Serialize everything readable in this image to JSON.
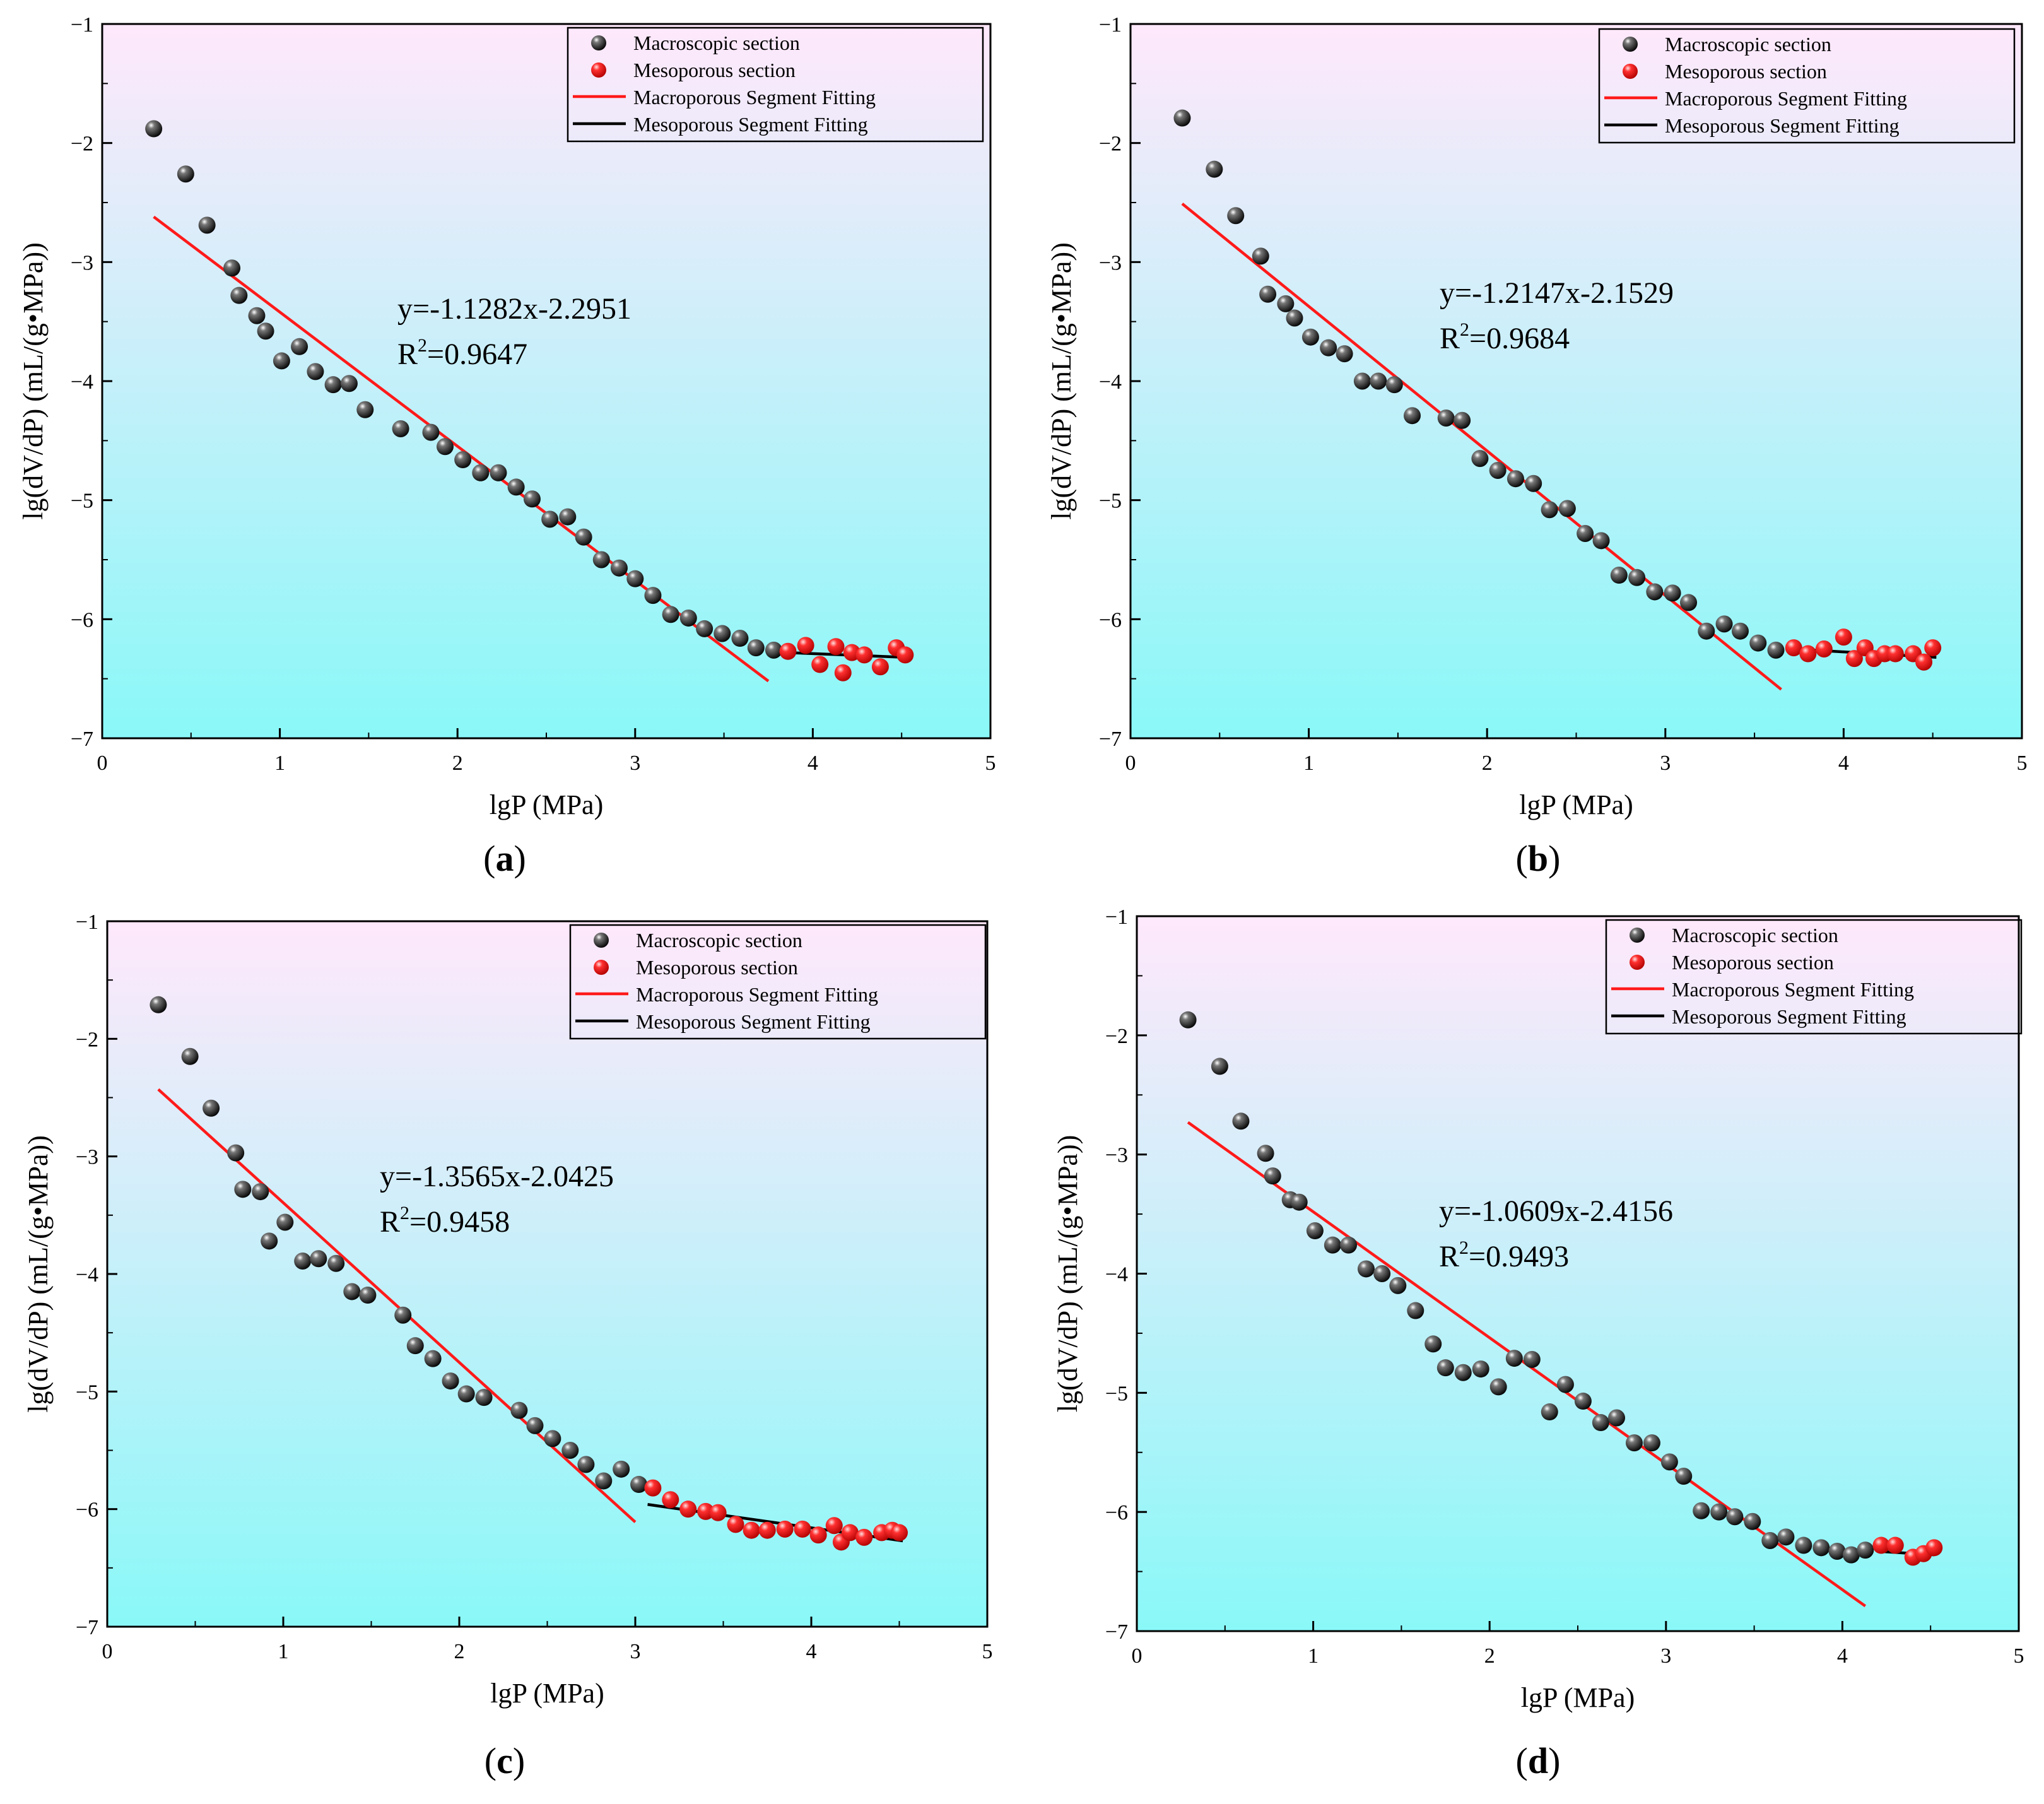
{
  "colors": {
    "macro_point": "#111111",
    "meso_point": "#ff1a1a",
    "macro_fit": "#ff1a1a",
    "meso_fit": "#000000",
    "bg_top": "#ffe8fb",
    "bg_bottom": "#8af8f8"
  },
  "legend": [
    "Macroscopic section",
    "Mesoporous section",
    "Macroporous Segment Fitting",
    "Mesoporous Segment Fitting"
  ],
  "chart_data": [
    {
      "type": "scatter",
      "panel_label": "a",
      "xlabel": "lgP (MPa)",
      "ylabel": "lg(dV/dP) (mL/(g•MPa))",
      "xlim": [
        0,
        5
      ],
      "ylim": [
        -7,
        -1
      ],
      "xticks": [
        "0",
        "1",
        "2",
        "3",
        "4",
        "5"
      ],
      "yticks": [
        "−7",
        "−6",
        "−5",
        "−4",
        "−3",
        "−2",
        "−1"
      ],
      "equation": "y=-1.1282x-2.2951",
      "r2_label": "R",
      "r2_sup": "2",
      "r2_value": "=0.9647",
      "fit_macro": {
        "x": [
          0.29,
          3.75
        ],
        "y": [
          -2.62,
          -6.52
        ]
      },
      "fit_meso": {
        "x": [
          3.85,
          4.52
        ],
        "y": [
          -6.28,
          -6.32
        ]
      },
      "series": [
        {
          "name": "Macroscopic section",
          "x": [
            0.29,
            0.47,
            0.59,
            0.73,
            0.77,
            0.87,
            0.92,
            1.01,
            1.11,
            1.2,
            1.3,
            1.39,
            1.48,
            1.68,
            1.85,
            1.93,
            2.03,
            2.13,
            2.23,
            2.33,
            2.42,
            2.52,
            2.62,
            2.71,
            2.81,
            2.91,
            3.0,
            3.1,
            3.2,
            3.3,
            3.39,
            3.49,
            3.59,
            3.68,
            3.78
          ],
          "y": [
            -1.88,
            -2.26,
            -2.69,
            -3.05,
            -3.28,
            -3.45,
            -3.58,
            -3.83,
            -3.71,
            -3.92,
            -4.03,
            -4.02,
            -4.24,
            -4.4,
            -4.43,
            -4.55,
            -4.66,
            -4.77,
            -4.77,
            -4.89,
            -4.99,
            -5.16,
            -5.14,
            -5.31,
            -5.5,
            -5.57,
            -5.66,
            -5.8,
            -5.96,
            -5.99,
            -6.08,
            -6.12,
            -6.16,
            -6.24,
            -6.26
          ]
        },
        {
          "name": "Mesoporous section",
          "x": [
            3.86,
            3.96,
            4.04,
            4.13,
            4.17,
            4.22,
            4.29,
            4.38,
            4.47,
            4.52
          ],
          "y": [
            -6.27,
            -6.22,
            -6.38,
            -6.23,
            -6.45,
            -6.28,
            -6.3,
            -6.4,
            -6.24,
            -6.3
          ]
        }
      ]
    },
    {
      "type": "scatter",
      "panel_label": "b",
      "xlabel": "lgP (MPa)",
      "ylabel": "lg(dV/dP) (mL/(g•MPa))",
      "xlim": [
        0,
        5
      ],
      "ylim": [
        -7,
        -1
      ],
      "xticks": [
        "0",
        "1",
        "2",
        "3",
        "4",
        "5"
      ],
      "yticks": [
        "−7",
        "−6",
        "−5",
        "−4",
        "−3",
        "−2",
        "−1"
      ],
      "equation": "y=-1.2147x-2.1529",
      "r2_label": "R",
      "r2_sup": "2",
      "r2_value": "=0.9684",
      "fit_macro": {
        "x": [
          0.29,
          3.65
        ],
        "y": [
          -2.51,
          -6.59
        ]
      },
      "fit_meso": {
        "x": [
          3.72,
          4.52
        ],
        "y": [
          -6.25,
          -6.32
        ]
      },
      "series": [
        {
          "name": "Macroscopic section",
          "x": [
            0.29,
            0.47,
            0.59,
            0.73,
            0.77,
            0.87,
            0.92,
            1.01,
            1.11,
            1.2,
            1.3,
            1.39,
            1.48,
            1.58,
            1.77,
            1.86,
            1.96,
            2.06,
            2.16,
            2.26,
            2.35,
            2.45,
            2.55,
            2.64,
            2.74,
            2.84,
            2.94,
            3.04,
            3.13,
            3.23,
            3.33,
            3.42,
            3.52,
            3.62
          ],
          "y": [
            -1.79,
            -2.22,
            -2.61,
            -2.95,
            -3.27,
            -3.35,
            -3.47,
            -3.63,
            -3.72,
            -3.77,
            -4.0,
            -4.0,
            -4.03,
            -4.29,
            -4.31,
            -4.33,
            -4.65,
            -4.75,
            -4.82,
            -4.86,
            -5.08,
            -5.07,
            -5.28,
            -5.34,
            -5.63,
            -5.65,
            -5.77,
            -5.78,
            -5.86,
            -6.1,
            -6.04,
            -6.1,
            -6.2,
            -6.26
          ]
        },
        {
          "name": "Mesoporous section",
          "x": [
            3.72,
            3.8,
            3.89,
            4.0,
            4.06,
            4.12,
            4.17,
            4.23,
            4.29,
            4.39,
            4.45,
            4.5
          ],
          "y": [
            -6.24,
            -6.29,
            -6.25,
            -6.15,
            -6.33,
            -6.24,
            -6.33,
            -6.29,
            -6.29,
            -6.29,
            -6.36,
            -6.24
          ]
        }
      ]
    },
    {
      "type": "scatter",
      "panel_label": "c",
      "xlabel": "lgP (MPa)",
      "ylabel": "lg(dV/dP) (mL/(g•MPa))",
      "xlim": [
        0,
        5
      ],
      "ylim": [
        -7,
        -1
      ],
      "xticks": [
        "0",
        "1",
        "2",
        "3",
        "4",
        "5"
      ],
      "yticks": [
        "−7",
        "−6",
        "−5",
        "−4",
        "−3",
        "−2",
        "−1"
      ],
      "equation": "y=-1.3565x-2.0425",
      "r2_label": "R",
      "r2_sup": "2",
      "r2_value": "=0.9458",
      "fit_macro": {
        "x": [
          0.29,
          3.0
        ],
        "y": [
          -2.43,
          -6.11
        ]
      },
      "fit_meso": {
        "x": [
          3.07,
          4.52
        ],
        "y": [
          -5.96,
          -6.27
        ]
      },
      "series": [
        {
          "name": "Macroscopic section",
          "x": [
            0.29,
            0.47,
            0.59,
            0.73,
            0.77,
            0.87,
            0.92,
            1.01,
            1.11,
            1.2,
            1.3,
            1.39,
            1.48,
            1.68,
            1.75,
            1.85,
            1.95,
            2.04,
            2.14,
            2.34,
            2.43,
            2.53,
            2.63,
            2.72,
            2.82,
            2.92,
            3.02
          ],
          "y": [
            -1.71,
            -2.15,
            -2.59,
            -2.97,
            -3.28,
            -3.3,
            -3.72,
            -3.56,
            -3.89,
            -3.87,
            -3.91,
            -4.15,
            -4.18,
            -4.35,
            -4.61,
            -4.72,
            -4.91,
            -5.02,
            -5.05,
            -5.16,
            -5.29,
            -5.4,
            -5.5,
            -5.62,
            -5.76,
            -5.66,
            -5.79
          ]
        },
        {
          "name": "Mesoporous section",
          "x": [
            3.1,
            3.2,
            3.3,
            3.4,
            3.47,
            3.57,
            3.66,
            3.75,
            3.85,
            3.95,
            4.04,
            4.13,
            4.17,
            4.22,
            4.3,
            4.4,
            4.46,
            4.5
          ],
          "y": [
            -5.82,
            -5.92,
            -6.0,
            -6.02,
            -6.03,
            -6.13,
            -6.18,
            -6.18,
            -6.17,
            -6.17,
            -6.22,
            -6.14,
            -6.28,
            -6.2,
            -6.24,
            -6.2,
            -6.18,
            -6.2
          ]
        }
      ]
    },
    {
      "type": "scatter",
      "panel_label": "d",
      "xlabel": "lgP (MPa)",
      "ylabel": "lg(dV/dP) (mL/(g•MPa))",
      "xlim": [
        0,
        5
      ],
      "ylim": [
        -7,
        -1
      ],
      "xticks": [
        "0",
        "1",
        "2",
        "3",
        "4",
        "5"
      ],
      "yticks": [
        "−7",
        "−6",
        "−5",
        "−4",
        "−3",
        "−2",
        "−1"
      ],
      "equation": "y=-1.0609x-2.4156",
      "r2_label": "R",
      "r2_sup": "2",
      "r2_value": "=0.9493",
      "fit_macro": {
        "x": [
          0.29,
          4.13
        ],
        "y": [
          -2.73,
          -6.79
        ]
      },
      "fit_meso": {
        "x": [
          4.2,
          4.52
        ],
        "y": [
          -6.33,
          -6.36
        ]
      },
      "series": [
        {
          "name": "Macroscopic section",
          "x": [
            0.29,
            0.47,
            0.59,
            0.73,
            0.77,
            0.87,
            0.92,
            1.01,
            1.11,
            1.2,
            1.3,
            1.39,
            1.48,
            1.58,
            1.68,
            1.75,
            1.85,
            1.95,
            2.05,
            2.14,
            2.24,
            2.34,
            2.43,
            2.53,
            2.63,
            2.72,
            2.82,
            2.92,
            3.02,
            3.1,
            3.2,
            3.3,
            3.39,
            3.49,
            3.59,
            3.68,
            3.78,
            3.88,
            3.97,
            4.05,
            4.13
          ],
          "y": [
            -1.87,
            -2.26,
            -2.72,
            -2.99,
            -3.18,
            -3.38,
            -3.4,
            -3.64,
            -3.76,
            -3.76,
            -3.96,
            -4.0,
            -4.1,
            -4.31,
            -4.59,
            -4.79,
            -4.83,
            -4.8,
            -4.95,
            -4.71,
            -4.72,
            -5.16,
            -4.93,
            -5.07,
            -5.25,
            -5.21,
            -5.42,
            -5.42,
            -5.58,
            -5.7,
            -5.99,
            -6.0,
            -6.04,
            -6.08,
            -6.24,
            -6.21,
            -6.28,
            -6.3,
            -6.33,
            -6.36,
            -6.32
          ]
        },
        {
          "name": "Mesoporous section",
          "x": [
            4.22,
            4.3,
            4.4,
            4.46,
            4.52
          ],
          "y": [
            -6.28,
            -6.28,
            -6.38,
            -6.35,
            -6.3
          ]
        }
      ]
    }
  ]
}
